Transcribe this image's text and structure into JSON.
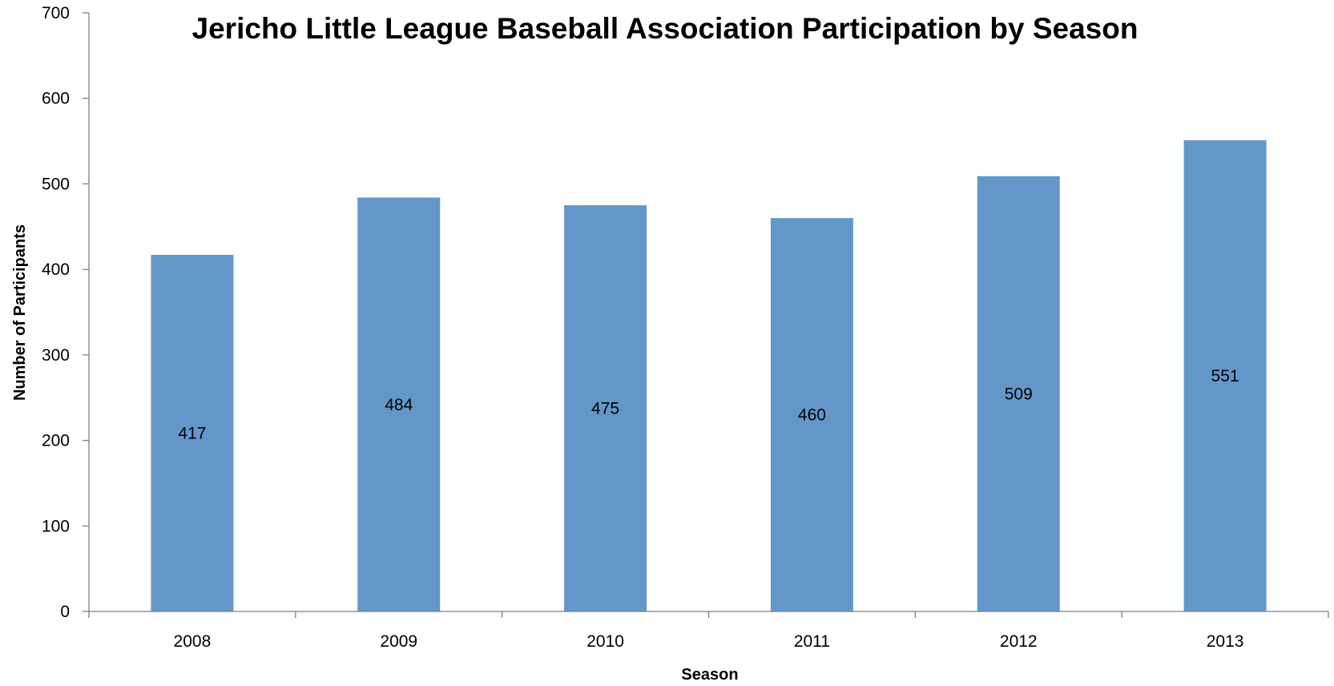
{
  "chart_data": {
    "type": "bar",
    "title": "Jericho Little League Baseball Association Participation by Season",
    "xlabel": "Season",
    "ylabel": "Number of Participants",
    "categories": [
      "2008",
      "2009",
      "2010",
      "2011",
      "2012",
      "2013"
    ],
    "values": [
      417,
      484,
      475,
      460,
      509,
      551
    ],
    "data_labels": [
      "417",
      "484",
      "475",
      "460",
      "509",
      "551"
    ],
    "ylim": [
      0,
      700
    ],
    "yticks": [
      0,
      100,
      200,
      300,
      400,
      500,
      600,
      700
    ],
    "ytick_labels": [
      "0",
      "100",
      "200",
      "300",
      "400",
      "500",
      "600",
      "700"
    ],
    "grid": false,
    "legend": "none",
    "bar_color": "#6497c9"
  }
}
